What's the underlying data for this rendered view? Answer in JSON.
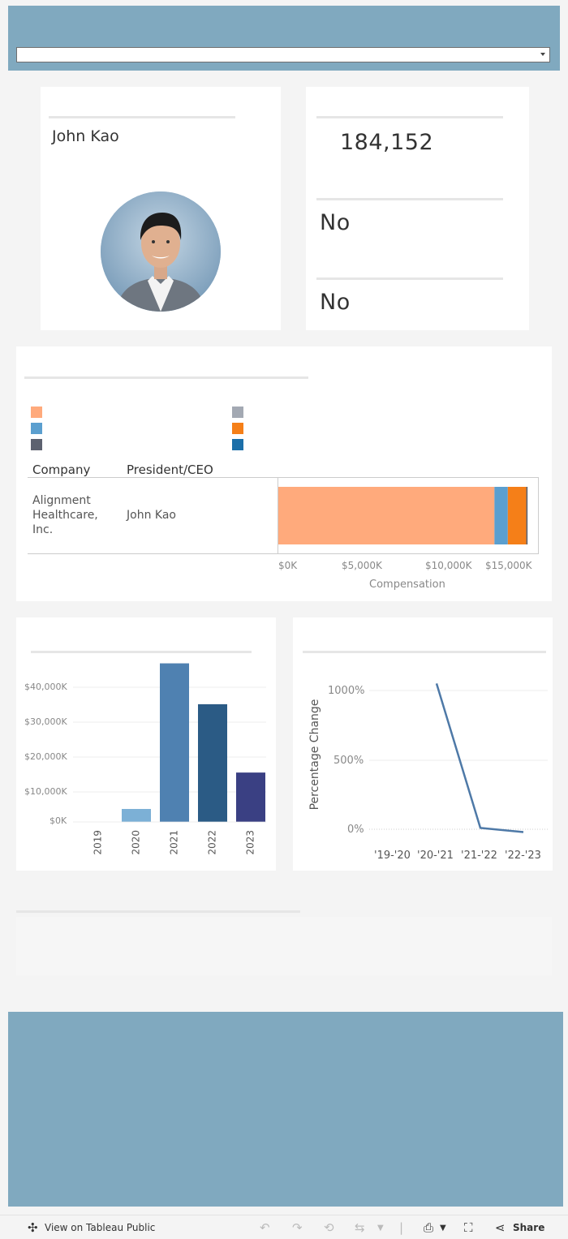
{
  "profile": {
    "name": "John Kao",
    "stat_value": "184,152",
    "flag_1": "No",
    "flag_2": "No"
  },
  "comp_table": {
    "headers": [
      "Company",
      "President/CEO"
    ],
    "company": "Alignment Healthcare, Inc.",
    "ceo": "John Kao",
    "axis_title": "Compensation",
    "ticks": [
      "$0K",
      "$5,000K",
      "$10,000K",
      "$15,000K"
    ]
  },
  "yearly": {
    "years": [
      "2019",
      "2020",
      "2021",
      "2022",
      "2023"
    ],
    "ticks": [
      "$0K",
      "$10,000K",
      "$20,000K",
      "$30,000K",
      "$40,000K"
    ]
  },
  "pct_change": {
    "y_title": "Percentage Change",
    "ticks": [
      "0%",
      "500%",
      "1000%"
    ],
    "periods": [
      "'19-'20",
      "'20-'21",
      "'21-'22",
      "'22-'23"
    ]
  },
  "footer": {
    "view_label": "View on Tableau Public",
    "share_label": "Share"
  },
  "colors": {
    "header_band": "#80a9bf",
    "legend": [
      "#ffaa7c",
      "#5b9fcf",
      "#5d6270",
      "#a3a9b3",
      "#f57f18",
      "#1c6fa9"
    ]
  },
  "chart_data": [
    {
      "type": "bar",
      "orientation": "horizontal",
      "categories": [
        "Alignment Healthcare, Inc."
      ],
      "series": [
        {
          "values": [
            12900
          ]
        },
        {
          "values": [
            800
          ]
        },
        {
          "values": [
            1100
          ]
        },
        {
          "values": [
            80
          ]
        }
      ],
      "xlabel": "Compensation",
      "xlim": [
        0,
        15500
      ],
      "tick_labels": [
        "$0K",
        "$5,000K",
        "$10,000K",
        "$15,000K"
      ]
    },
    {
      "type": "bar",
      "categories": [
        "2019",
        "2020",
        "2021",
        "2022",
        "2023"
      ],
      "values": [
        0,
        3700,
        46100,
        34200,
        14300
      ],
      "ylim": [
        -1500,
        46700
      ],
      "tick_labels": [
        "$0K",
        "$10,000K",
        "$20,000K",
        "$30,000K",
        "$40,000K"
      ],
      "grid": true
    },
    {
      "type": "line",
      "x": [
        "'20-'21",
        "'21-'22",
        "'22-'23"
      ],
      "values": [
        1100,
        -26,
        -58
      ],
      "ylabel": "Percentage Change",
      "ylim": [
        -150,
        1210
      ],
      "tick_labels": [
        "0%",
        "500%",
        "1000%"
      ]
    }
  ]
}
